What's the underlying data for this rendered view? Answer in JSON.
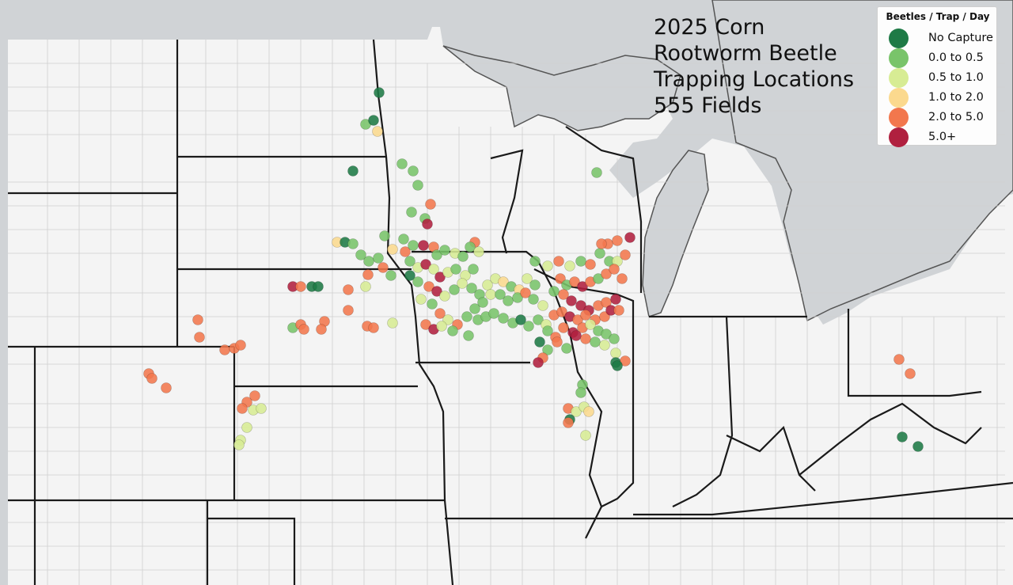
{
  "title": {
    "lines": [
      "2025 Corn",
      "Rootworm Beetle",
      "Trapping Locations",
      "555 Fields"
    ]
  },
  "legend": {
    "title": "Beetles / Trap / Day",
    "items": [
      {
        "label": "No Capture",
        "color": "#1e7a46"
      },
      {
        "label": "0.0 to 0.5",
        "color": "#79c46a"
      },
      {
        "label": "0.5 to 1.0",
        "color": "#d7ec94"
      },
      {
        "label": "1.0 to 2.0",
        "color": "#fbd98e"
      },
      {
        "label": "2.0 to 5.0",
        "color": "#f2774d"
      },
      {
        "label": "5.0+",
        "color": "#b0203f"
      }
    ]
  },
  "colors": {
    "water": "#d0d3d6",
    "land": "#f4f4f4",
    "state_border": "#1a1a1a",
    "county_border": "#c8c8c8"
  }
}
